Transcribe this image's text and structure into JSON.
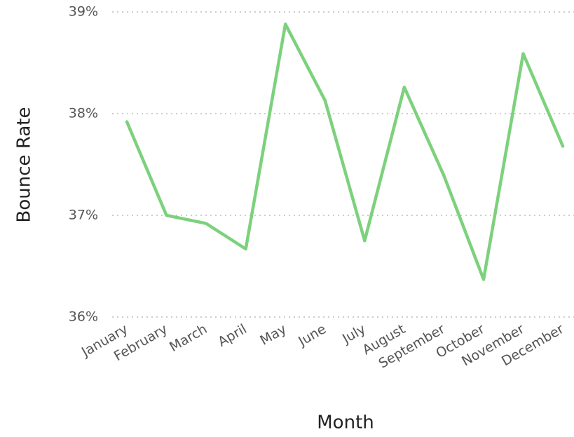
{
  "chart_data": {
    "type": "line",
    "x_label": "Month",
    "y_label": "Bounce Rate",
    "categories": [
      "January",
      "February",
      "March",
      "April",
      "May",
      "June",
      "July",
      "August",
      "September",
      "October",
      "November",
      "December"
    ],
    "values": [
      37.92,
      37.0,
      36.92,
      36.67,
      38.88,
      38.13,
      36.75,
      38.26,
      37.39,
      36.37,
      38.59,
      37.68
    ],
    "color": "#7dd17d",
    "ylim": [
      36,
      39
    ],
    "yticks": [
      {
        "value": 36,
        "label": "36%"
      },
      {
        "value": 37,
        "label": "37%"
      },
      {
        "value": 38,
        "label": "38%"
      },
      {
        "value": 39,
        "label": "39%"
      }
    ],
    "grid": true
  }
}
